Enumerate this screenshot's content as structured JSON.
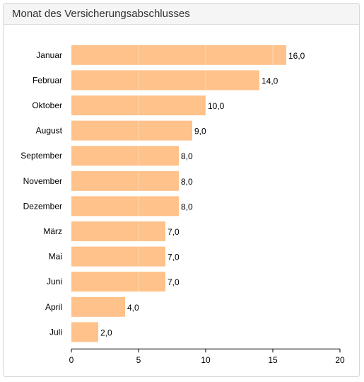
{
  "panel": {
    "title": "Monat des Versicherungsabschlusses"
  },
  "colors": {
    "bar": "#ffc28a",
    "axis": "#000000",
    "text": "#000000",
    "grid": "#ffffff"
  },
  "chart_data": {
    "type": "bar",
    "orientation": "horizontal",
    "title": "",
    "xlabel": "",
    "ylabel": "",
    "categories": [
      "Januar",
      "Februar",
      "Oktober",
      "August",
      "September",
      "November",
      "Dezember",
      "März",
      "Mai",
      "Juni",
      "April",
      "Juli"
    ],
    "values": [
      16,
      14,
      10,
      9,
      8,
      8,
      8,
      7,
      7,
      7,
      4,
      2
    ],
    "value_labels": [
      "16,0",
      "14,0",
      "10,0",
      "9,0",
      "8,0",
      "8,0",
      "8,0",
      "7,0",
      "7,0",
      "7,0",
      "4,0",
      "2,0"
    ],
    "xlim": [
      0,
      20
    ],
    "xticks": [
      0,
      5,
      10,
      15,
      20
    ],
    "xtick_labels": [
      "0",
      "5",
      "10",
      "15",
      "20"
    ],
    "grid": true,
    "legend": "none"
  }
}
